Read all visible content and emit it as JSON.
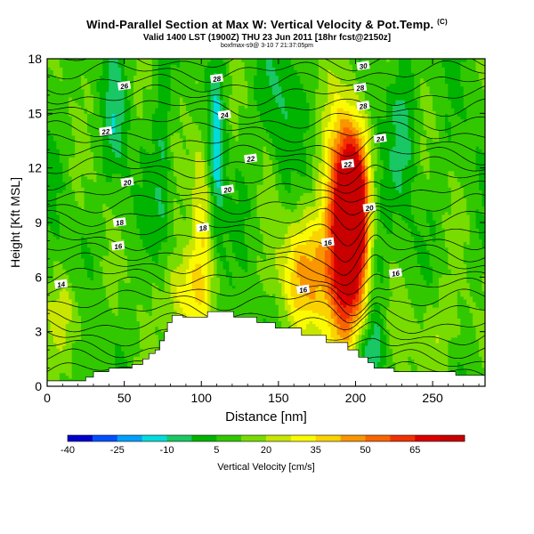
{
  "chart_data": {
    "type": "heatmap",
    "title": "Wind-Parallel Section at Max W: Vertical Velocity & Pot.Temp.",
    "title_mark": "(C)",
    "subtitle": "Valid 1400 LST (1900Z) THU 23 Jun 2011 [18hr fcst@2150z]",
    "credit": "boxfmax-s9@ 3-10 7 21:37:05pm",
    "xlabel": "Distance [nm]",
    "ylabel": "Height [Kft MSL]",
    "xlim": [
      0,
      284
    ],
    "ylim": [
      0,
      18
    ],
    "xticks": [
      0,
      50,
      100,
      150,
      200,
      250
    ],
    "yticks": [
      0,
      3,
      6,
      9,
      12,
      15,
      18
    ],
    "colorbar": {
      "label": "Vertical Velocity [cm/s]",
      "min": -40,
      "max": 80,
      "ticks": [
        -40,
        -25,
        -10,
        5,
        20,
        35,
        50,
        65
      ],
      "colors": [
        "#0000cd",
        "#0050ff",
        "#00a0ff",
        "#00dcdc",
        "#19c864",
        "#00b400",
        "#32c800",
        "#78dc00",
        "#c8e600",
        "#fafa00",
        "#fad200",
        "#fa9600",
        "#fa6400",
        "#f03200",
        "#dc0000",
        "#c80000"
      ]
    },
    "terrain": [
      [
        0,
        0.3
      ],
      [
        25,
        0.3
      ],
      [
        25,
        0.5
      ],
      [
        30,
        0.5
      ],
      [
        30,
        0.8
      ],
      [
        40,
        0.8
      ],
      [
        40,
        1.0
      ],
      [
        55,
        1.0
      ],
      [
        55,
        1.2
      ],
      [
        62,
        1.2
      ],
      [
        62,
        1.5
      ],
      [
        66,
        1.5
      ],
      [
        66,
        1.8
      ],
      [
        70,
        1.8
      ],
      [
        70,
        2.0
      ],
      [
        73,
        2.0
      ],
      [
        73,
        2.5
      ],
      [
        76,
        2.5
      ],
      [
        76,
        3.0
      ],
      [
        78,
        3.0
      ],
      [
        78,
        3.5
      ],
      [
        81,
        3.5
      ],
      [
        81,
        3.9
      ],
      [
        88,
        3.9
      ],
      [
        88,
        3.8
      ],
      [
        104,
        3.8
      ],
      [
        104,
        4.1
      ],
      [
        121,
        4.1
      ],
      [
        121,
        3.8
      ],
      [
        136,
        3.8
      ],
      [
        136,
        3.5
      ],
      [
        148,
        3.5
      ],
      [
        148,
        3.2
      ],
      [
        165,
        3.2
      ],
      [
        165,
        2.8
      ],
      [
        181,
        2.8
      ],
      [
        181,
        2.4
      ],
      [
        195,
        2.4
      ],
      [
        195,
        2.0
      ],
      [
        202,
        2.0
      ],
      [
        202,
        1.6
      ],
      [
        208,
        1.6
      ],
      [
        208,
        1.3
      ],
      [
        212,
        1.3
      ],
      [
        212,
        1.0
      ],
      [
        225,
        1.0
      ],
      [
        225,
        0.8
      ],
      [
        265,
        0.8
      ],
      [
        265,
        0.6
      ],
      [
        284,
        0.6
      ]
    ],
    "updrafts": [
      {
        "x": 195,
        "y": 8.0,
        "sx": 10,
        "sy": 4.2,
        "w": 78
      },
      {
        "x": 197,
        "y": 11.0,
        "sx": 8,
        "sy": 2.6,
        "w": 30
      },
      {
        "x": 168,
        "y": 6.2,
        "sx": 14,
        "sy": 2.2,
        "w": 30
      },
      {
        "x": 100,
        "y": 9.5,
        "sx": 5,
        "sy": 4.5,
        "w": 20
      },
      {
        "x": 88,
        "y": 5.0,
        "sx": 9,
        "sy": 1.8,
        "w": 25
      },
      {
        "x": 14,
        "y": 4.0,
        "sx": 10,
        "sy": 1.5,
        "w": 12
      },
      {
        "x": 252,
        "y": 3.0,
        "sx": 14,
        "sy": 2.0,
        "w": 10
      }
    ],
    "downdrafts": [
      {
        "x": 110,
        "y": 13.0,
        "sx": 4,
        "sy": 4.0,
        "w": 22
      },
      {
        "x": 45,
        "y": 15.0,
        "sx": 5,
        "sy": 2.5,
        "w": 14
      },
      {
        "x": 75,
        "y": 12.0,
        "sx": 4,
        "sy": 4.0,
        "w": 13
      },
      {
        "x": 213,
        "y": 7.5,
        "sx": 5,
        "sy": 5.0,
        "w": 16
      },
      {
        "x": 232,
        "y": 14.5,
        "sx": 6,
        "sy": 3.0,
        "w": 14
      },
      {
        "x": 148,
        "y": 16.0,
        "sx": 8,
        "sy": 2.0,
        "w": 9
      },
      {
        "x": 207,
        "y": 2.0,
        "sx": 8,
        "sy": 1.0,
        "w": 15
      },
      {
        "x": 152,
        "y": 12.0,
        "sx": 5,
        "sy": 2.5,
        "w": 6
      }
    ],
    "contour_labels": [
      {
        "text": "30",
        "x": 205,
        "y": 17.6
      },
      {
        "text": "28",
        "x": 203,
        "y": 16.4
      },
      {
        "text": "28",
        "x": 205,
        "y": 15.4
      },
      {
        "text": "28",
        "x": 110,
        "y": 16.9
      },
      {
        "text": "26",
        "x": 50,
        "y": 16.5
      },
      {
        "text": "24",
        "x": 115,
        "y": 14.9
      },
      {
        "text": "24",
        "x": 216,
        "y": 13.6
      },
      {
        "text": "22",
        "x": 38,
        "y": 14.0
      },
      {
        "text": "22",
        "x": 132,
        "y": 12.5
      },
      {
        "text": "22",
        "x": 195,
        "y": 12.2
      },
      {
        "text": "20",
        "x": 52,
        "y": 11.2
      },
      {
        "text": "20",
        "x": 117,
        "y": 10.8
      },
      {
        "text": "20",
        "x": 209,
        "y": 9.8
      },
      {
        "text": "18",
        "x": 47,
        "y": 9.0
      },
      {
        "text": "18",
        "x": 101,
        "y": 8.7
      },
      {
        "text": "16",
        "x": 46,
        "y": 7.7
      },
      {
        "text": "16",
        "x": 182,
        "y": 7.9
      },
      {
        "text": "16",
        "x": 226,
        "y": 6.2
      },
      {
        "text": "16",
        "x": 166,
        "y": 5.3
      },
      {
        "text": "14",
        "x": 9,
        "y": 5.6
      }
    ]
  }
}
